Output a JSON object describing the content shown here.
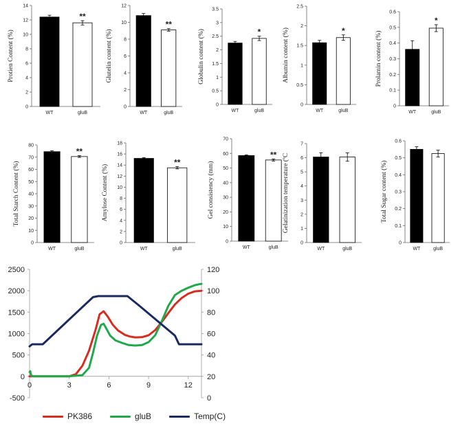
{
  "colors": {
    "bar_wt": "#000000",
    "bar_glub": "#ffffff",
    "pk386": "#d62d20",
    "glub": "#20a84a",
    "temp": "#1b2a5e"
  },
  "chart_data": [
    {
      "type": "bar",
      "ylabel": "Protien Content (%)",
      "categories": [
        "WT",
        "gluB"
      ],
      "values": [
        12.4,
        11.6
      ],
      "errors": [
        0.25,
        0.3
      ],
      "sig": [
        "",
        "**"
      ],
      "ylim": [
        0,
        14
      ],
      "yticks": [
        0,
        2,
        4,
        6,
        8,
        10,
        12,
        14
      ]
    },
    {
      "type": "bar",
      "ylabel": "Glutelin content (%)",
      "categories": [
        "WT",
        "gluB"
      ],
      "values": [
        10.8,
        9.1
      ],
      "errors": [
        0.25,
        0.15
      ],
      "sig": [
        "",
        "**"
      ],
      "ylim": [
        0,
        12
      ],
      "yticks": [
        0,
        2,
        4,
        6,
        8,
        10,
        12
      ]
    },
    {
      "type": "bar",
      "ylabel": "Globulin content (%)",
      "categories": [
        "WT",
        "gluB"
      ],
      "values": [
        2.25,
        2.42
      ],
      "errors": [
        0.06,
        0.08
      ],
      "sig": [
        "",
        "*"
      ],
      "ylim": [
        0,
        3.5
      ],
      "yticks": [
        0,
        0.5,
        1,
        1.5,
        2,
        2.5,
        3,
        3.5
      ]
    },
    {
      "type": "bar",
      "ylabel": "Albumin content (%)",
      "categories": [
        "WT",
        "gluB"
      ],
      "values": [
        1.57,
        1.7
      ],
      "errors": [
        0.06,
        0.07
      ],
      "sig": [
        "",
        "*"
      ],
      "ylim": [
        0,
        2.5
      ],
      "yticks": [
        0,
        0.5,
        1,
        1.5,
        2,
        2.5
      ]
    },
    {
      "type": "bar",
      "ylabel": "Prolamin content (%)",
      "categories": [
        "WT",
        "gluB"
      ],
      "values": [
        0.36,
        0.495
      ],
      "errors": [
        0.055,
        0.022
      ],
      "sig": [
        "",
        "*"
      ],
      "ylim": [
        0,
        0.6
      ],
      "yticks": [
        0,
        0.1,
        0.2,
        0.3,
        0.4,
        0.5,
        0.6
      ]
    },
    {
      "type": "bar",
      "ylabel": "Total Starch Content (%)",
      "categories": [
        "WT",
        "gluB"
      ],
      "values": [
        74.5,
        70.5
      ],
      "errors": [
        0.8,
        0.7
      ],
      "sig": [
        "",
        "**"
      ],
      "ylim": [
        0,
        80
      ],
      "yticks": [
        0,
        10,
        20,
        30,
        40,
        50,
        60,
        70,
        80
      ]
    },
    {
      "type": "bar",
      "ylabel": "Amylose Content (%)",
      "categories": [
        "WT",
        "gluB"
      ],
      "values": [
        15.2,
        13.5
      ],
      "errors": [
        0.15,
        0.2
      ],
      "sig": [
        "",
        "**"
      ],
      "ylim": [
        0,
        18
      ],
      "yticks": [
        0,
        2,
        4,
        6,
        8,
        10,
        12,
        14,
        16,
        18
      ]
    },
    {
      "type": "bar",
      "ylabel": "Gel consistency (mm)",
      "categories": [
        "WT",
        "gluB"
      ],
      "values": [
        58.5,
        55.5
      ],
      "errors": [
        0.5,
        0.7
      ],
      "sig": [
        "",
        "**"
      ],
      "ylim": [
        0,
        70
      ],
      "yticks": [
        0,
        10,
        20,
        30,
        40,
        50,
        60,
        70
      ]
    },
    {
      "type": "bar",
      "ylabel": "Gelatinization temperature (ºC",
      "categories": [
        "WT",
        "gluB"
      ],
      "values": [
        6.05,
        6.05
      ],
      "errors": [
        0.3,
        0.3
      ],
      "sig": [
        "",
        ""
      ],
      "ylim": [
        0,
        7
      ],
      "yticks": [
        0,
        1,
        2,
        3,
        4,
        5,
        6,
        7
      ]
    },
    {
      "type": "bar",
      "ylabel": "Total Sugar content (%)",
      "categories": [
        "WT",
        "gluB"
      ],
      "values": [
        0.55,
        0.525
      ],
      "errors": [
        0.015,
        0.02
      ],
      "sig": [
        "",
        ""
      ],
      "ylim": [
        0,
        0.6
      ],
      "yticks": [
        0,
        0.1,
        0.2,
        0.3,
        0.4,
        0.5,
        0.6
      ]
    },
    {
      "type": "line",
      "xlim": [
        0,
        13
      ],
      "xticks": [
        0,
        3,
        6,
        9,
        12
      ],
      "ylim": [
        -500,
        2500
      ],
      "yticks": [
        -500,
        0,
        500,
        1000,
        1500,
        2000,
        2500
      ],
      "y2lim": [
        0,
        120
      ],
      "y2ticks": [
        0,
        20,
        40,
        60,
        80,
        100,
        120
      ],
      "series": [
        {
          "name": "PK386",
          "axis": "left",
          "color": "#d62d20",
          "x": [
            0,
            3,
            3.5,
            4,
            4.5,
            5,
            5.3,
            5.6,
            5.9,
            6.3,
            6.7,
            7.2,
            7.6,
            8,
            8.5,
            9,
            9.5,
            10,
            10.5,
            11,
            11.5,
            12,
            12.5,
            13
          ],
          "y": [
            0,
            0,
            50,
            250,
            600,
            1100,
            1450,
            1520,
            1400,
            1200,
            1070,
            970,
            930,
            910,
            915,
            960,
            1080,
            1270,
            1480,
            1680,
            1830,
            1930,
            1985,
            2000
          ]
        },
        {
          "name": "gluB",
          "axis": "left",
          "color": "#20a84a",
          "x": [
            0,
            0.05,
            0.12,
            0.3,
            1,
            2,
            3,
            4,
            4.5,
            4.8,
            5.1,
            5.4,
            5.6,
            5.8,
            6.1,
            6.5,
            7,
            7.5,
            8,
            8.5,
            9,
            9.5,
            10,
            10.5,
            11,
            11.5,
            12,
            12.5,
            12.8,
            13
          ],
          "y": [
            100,
            120,
            20,
            0,
            0,
            0,
            0,
            30,
            200,
            550,
            950,
            1200,
            1230,
            1120,
            950,
            840,
            780,
            730,
            720,
            730,
            800,
            960,
            1290,
            1650,
            1900,
            2000,
            2070,
            2130,
            2150,
            2160
          ]
        },
        {
          "name": "Temp(C)",
          "axis": "right",
          "color": "#1b2a5e",
          "x": [
            0,
            0.2,
            1,
            4.8,
            5.2,
            7.4,
            8.3,
            11,
            11.3,
            13
          ],
          "y": [
            48,
            50,
            50,
            94,
            95,
            95,
            86,
            58,
            50,
            50
          ]
        }
      ],
      "legend": "bottom"
    }
  ]
}
